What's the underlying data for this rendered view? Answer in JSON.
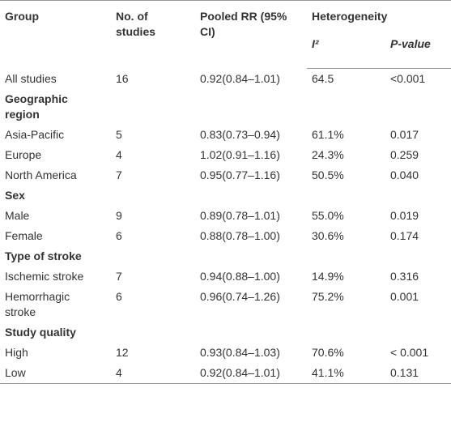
{
  "header": {
    "group": "Group",
    "studies": "No. of studies",
    "pooled": "Pooled RR (95% CI)",
    "heterogeneity": "Heterogeneity",
    "i2": "I²",
    "p_value": "P-value"
  },
  "rows": [
    {
      "cells": [
        "All studies",
        "16",
        "0.92(0.84–1.01)",
        "64.5",
        "<0.001"
      ]
    },
    {
      "section": "Geographic region"
    },
    {
      "cells": [
        "Asia-Pacific",
        "5",
        "0.83(0.73–0.94)",
        "61.1%",
        "0.017"
      ]
    },
    {
      "cells": [
        "Europe",
        "4",
        "1.02(0.91–1.16)",
        "24.3%",
        "0.259"
      ]
    },
    {
      "cells": [
        "North America",
        "7",
        "0.95(0.77–1.16)",
        "50.5%",
        "0.040"
      ]
    },
    {
      "section": "Sex"
    },
    {
      "cells": [
        "Male",
        "9",
        "0.89(0.78–1.01)",
        "55.0%",
        "0.019"
      ]
    },
    {
      "cells": [
        "Female",
        "6",
        "0.88(0.78–1.00)",
        "30.6%",
        "0.174"
      ]
    },
    {
      "section": "Type of stroke"
    },
    {
      "cells": [
        "Ischemic stroke",
        "7",
        "0.94(0.88–1.00)",
        "14.9%",
        "0.316"
      ]
    },
    {
      "cells": [
        "Hemorrhagic stroke",
        "6",
        "0.96(0.74–1.26)",
        "75.2%",
        "0.001"
      ]
    },
    {
      "section": "Study quality"
    },
    {
      "cells": [
        "High",
        "12",
        "0.93(0.84–1.03)",
        "70.6%",
        "< 0.001"
      ]
    },
    {
      "cells": [
        "Low",
        "4",
        "0.92(0.84–1.01)",
        "41.1%",
        "0.131"
      ]
    }
  ]
}
